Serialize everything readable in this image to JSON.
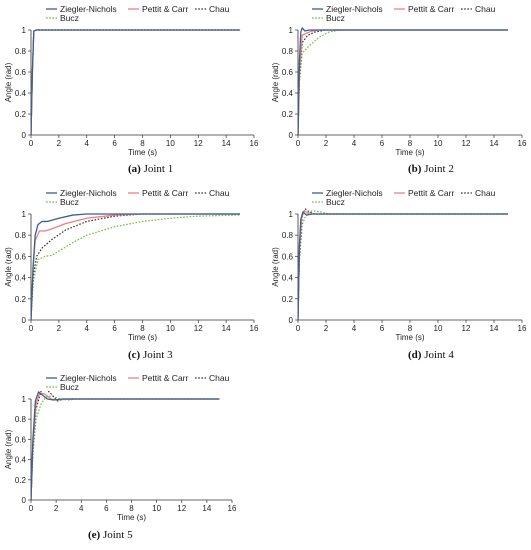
{
  "chart_data": [
    {
      "type": "line",
      "caption": {
        "label": "(a)",
        "text": "Joint 1"
      },
      "xlabel": "Time (s)",
      "ylabel": "Angle (rad)",
      "xlim": [
        0,
        16
      ],
      "ylim": [
        0,
        1
      ],
      "xticks": [
        0,
        2,
        4,
        6,
        8,
        10,
        12,
        14,
        16
      ],
      "yticks": [
        0,
        0.2,
        0.4,
        0.6,
        0.8,
        1
      ],
      "legend": "top",
      "series": [
        {
          "name": "Ziegler-Nichols",
          "color": "#3a5f8f",
          "dash": "solid",
          "points": [
            [
              0,
              0
            ],
            [
              0.1,
              0.6
            ],
            [
              0.2,
              0.99
            ],
            [
              0.4,
              1
            ],
            [
              15,
              1
            ]
          ]
        },
        {
          "name": "Pettit & Carr",
          "color": "#f08080",
          "dash": "solid",
          "points": [
            [
              0,
              0
            ],
            [
              0.1,
              0.6
            ],
            [
              0.2,
              0.99
            ],
            [
              0.4,
              1
            ],
            [
              15,
              1
            ]
          ]
        },
        {
          "name": "Chau",
          "color": "#333333",
          "dash": "dotted",
          "points": [
            [
              0,
              0
            ],
            [
              0.1,
              0.6
            ],
            [
              0.2,
              0.99
            ],
            [
              0.4,
              1
            ],
            [
              15,
              1
            ]
          ]
        },
        {
          "name": "Bucz",
          "color": "#6abf3a",
          "dash": "dotted",
          "points": [
            [
              0,
              0
            ],
            [
              0.1,
              0.6
            ],
            [
              0.2,
              0.99
            ],
            [
              0.4,
              1
            ],
            [
              15,
              1
            ]
          ]
        }
      ]
    },
    {
      "type": "line",
      "caption": {
        "label": "(b)",
        "text": "Joint 2"
      },
      "xlabel": "Time (s)",
      "ylabel": "Angle (rad)",
      "xlim": [
        0,
        16
      ],
      "ylim": [
        0,
        1
      ],
      "xticks": [
        0,
        2,
        4,
        6,
        8,
        10,
        12,
        14,
        16
      ],
      "yticks": [
        0,
        0.2,
        0.4,
        0.6,
        0.8,
        1
      ],
      "legend": "top",
      "series": [
        {
          "name": "Ziegler-Nichols",
          "color": "#3a5f8f",
          "dash": "solid",
          "points": [
            [
              0,
              0
            ],
            [
              0.1,
              0.7
            ],
            [
              0.2,
              0.98
            ],
            [
              0.3,
              1.02
            ],
            [
              0.5,
              0.99
            ],
            [
              0.8,
              1
            ],
            [
              15,
              1
            ]
          ]
        },
        {
          "name": "Pettit & Carr",
          "color": "#f08080",
          "dash": "solid",
          "points": [
            [
              0,
              0
            ],
            [
              0.1,
              0.6
            ],
            [
              0.3,
              0.95
            ],
            [
              0.6,
              0.97
            ],
            [
              1,
              0.99
            ],
            [
              1.5,
              1
            ],
            [
              15,
              1
            ]
          ]
        },
        {
          "name": "Chau",
          "color": "#333333",
          "dash": "dotted",
          "points": [
            [
              0,
              0
            ],
            [
              0.1,
              0.55
            ],
            [
              0.3,
              0.88
            ],
            [
              0.7,
              0.95
            ],
            [
              1.2,
              0.98
            ],
            [
              2,
              1
            ],
            [
              15,
              1
            ]
          ]
        },
        {
          "name": "Bucz",
          "color": "#6abf3a",
          "dash": "dotted",
          "points": [
            [
              0,
              0
            ],
            [
              0.1,
              0.5
            ],
            [
              0.3,
              0.78
            ],
            [
              0.8,
              0.85
            ],
            [
              1.5,
              0.93
            ],
            [
              2.2,
              0.98
            ],
            [
              3,
              1
            ],
            [
              15,
              1
            ]
          ]
        }
      ]
    },
    {
      "type": "line",
      "caption": {
        "label": "(c)",
        "text": "Joint 3"
      },
      "xlabel": "Time (s)",
      "ylabel": "Angle (rad)",
      "xlim": [
        0,
        16
      ],
      "ylim": [
        0,
        1
      ],
      "xticks": [
        0,
        2,
        4,
        6,
        8,
        10,
        12,
        14,
        16
      ],
      "yticks": [
        0,
        0.2,
        0.4,
        0.6,
        0.8,
        1
      ],
      "legend": "top",
      "series": [
        {
          "name": "Ziegler-Nichols",
          "color": "#3a5f8f",
          "dash": "solid",
          "points": [
            [
              0,
              0
            ],
            [
              0.15,
              0.5
            ],
            [
              0.3,
              0.8
            ],
            [
              0.5,
              0.9
            ],
            [
              0.8,
              0.93
            ],
            [
              1.2,
              0.93
            ],
            [
              2,
              0.96
            ],
            [
              3,
              0.99
            ],
            [
              4,
              1
            ],
            [
              15,
              1
            ]
          ]
        },
        {
          "name": "Pettit & Carr",
          "color": "#f08080",
          "dash": "solid",
          "points": [
            [
              0,
              0
            ],
            [
              0.15,
              0.5
            ],
            [
              0.3,
              0.75
            ],
            [
              0.6,
              0.84
            ],
            [
              1,
              0.84
            ],
            [
              1.5,
              0.86
            ],
            [
              2.5,
              0.91
            ],
            [
              4,
              0.96
            ],
            [
              6,
              0.99
            ],
            [
              8,
              1
            ],
            [
              15,
              1
            ]
          ]
        },
        {
          "name": "Chau",
          "color": "#333333",
          "dash": "dotted",
          "points": [
            [
              0,
              0
            ],
            [
              0.15,
              0.4
            ],
            [
              0.4,
              0.6
            ],
            [
              0.8,
              0.68
            ],
            [
              1.5,
              0.76
            ],
            [
              2.5,
              0.85
            ],
            [
              4,
              0.93
            ],
            [
              6,
              0.98
            ],
            [
              8,
              1
            ],
            [
              15,
              1
            ]
          ]
        },
        {
          "name": "Bucz",
          "color": "#6abf3a",
          "dash": "dotted",
          "points": [
            [
              0,
              0
            ],
            [
              0.15,
              0.35
            ],
            [
              0.5,
              0.57
            ],
            [
              1,
              0.6
            ],
            [
              1.5,
              0.61
            ],
            [
              2,
              0.65
            ],
            [
              3,
              0.73
            ],
            [
              4,
              0.8
            ],
            [
              6,
              0.88
            ],
            [
              8,
              0.93
            ],
            [
              10,
              0.96
            ],
            [
              12,
              0.98
            ],
            [
              15,
              0.99
            ]
          ]
        }
      ]
    },
    {
      "type": "line",
      "caption": {
        "label": "(d)",
        "text": "Joint 4"
      },
      "xlabel": "Time (s)",
      "ylabel": "Angle (rad)",
      "xlim": [
        0,
        16
      ],
      "ylim": [
        0,
        1
      ],
      "xticks": [
        0,
        2,
        4,
        6,
        8,
        10,
        12,
        14,
        16
      ],
      "yticks": [
        0,
        0.2,
        0.4,
        0.6,
        0.8,
        1
      ],
      "legend": "top",
      "series": [
        {
          "name": "Ziegler-Nichols",
          "color": "#3a5f8f",
          "dash": "solid",
          "points": [
            [
              0,
              0
            ],
            [
              0.1,
              0.7
            ],
            [
              0.2,
              0.95
            ],
            [
              0.35,
              1.02
            ],
            [
              0.6,
              0.99
            ],
            [
              1,
              1
            ],
            [
              15,
              1
            ]
          ]
        },
        {
          "name": "Pettit & Carr",
          "color": "#f08080",
          "dash": "solid",
          "points": [
            [
              0,
              0
            ],
            [
              0.1,
              0.65
            ],
            [
              0.25,
              0.96
            ],
            [
              0.45,
              1.03
            ],
            [
              0.8,
              1
            ],
            [
              15,
              1
            ]
          ]
        },
        {
          "name": "Chau",
          "color": "#333333",
          "dash": "dotted",
          "points": [
            [
              0,
              0
            ],
            [
              0.1,
              0.6
            ],
            [
              0.3,
              0.98
            ],
            [
              0.5,
              1.05
            ],
            [
              0.8,
              1.02
            ],
            [
              1.2,
              1
            ],
            [
              15,
              1
            ]
          ]
        },
        {
          "name": "Bucz",
          "color": "#6abf3a",
          "dash": "dotted",
          "points": [
            [
              0,
              0
            ],
            [
              0.1,
              0.55
            ],
            [
              0.3,
              0.9
            ],
            [
              0.6,
              1.0
            ],
            [
              1,
              1.03
            ],
            [
              1.6,
              1.02
            ],
            [
              2.2,
              1
            ],
            [
              15,
              1
            ]
          ]
        }
      ]
    },
    {
      "type": "line",
      "caption": {
        "label": "(e)",
        "text": "Joint 5"
      },
      "xlabel": "Time (s)",
      "ylabel": "Angle (rad)",
      "xlim": [
        0,
        16
      ],
      "ylim": [
        0,
        1
      ],
      "xticks": [
        0,
        2,
        4,
        6,
        8,
        10,
        12,
        14,
        16
      ],
      "yticks": [
        0,
        0.2,
        0.4,
        0.6,
        0.8,
        1
      ],
      "legend": "top",
      "series": [
        {
          "name": "Ziegler-Nichols",
          "color": "#3a5f8f",
          "dash": "solid",
          "points": [
            [
              0,
              0
            ],
            [
              0.15,
              0.6
            ],
            [
              0.35,
              0.98
            ],
            [
              0.6,
              1.07
            ],
            [
              0.9,
              1.04
            ],
            [
              1.3,
              1.0
            ],
            [
              1.8,
              0.99
            ],
            [
              2.5,
              1
            ],
            [
              15,
              1
            ]
          ]
        },
        {
          "name": "Pettit & Carr",
          "color": "#f08080",
          "dash": "solid",
          "points": [
            [
              0,
              0
            ],
            [
              0.15,
              0.55
            ],
            [
              0.4,
              0.95
            ],
            [
              0.7,
              1.06
            ],
            [
              1.1,
              1.05
            ],
            [
              1.6,
              1.0
            ],
            [
              2.2,
              0.99
            ],
            [
              3,
              1
            ],
            [
              15,
              1
            ]
          ]
        },
        {
          "name": "Chau",
          "color": "#333333",
          "dash": "dotted",
          "points": [
            [
              0,
              0
            ],
            [
              0.15,
              0.5
            ],
            [
              0.4,
              0.9
            ],
            [
              0.8,
              1.08
            ],
            [
              1.2,
              1.1
            ],
            [
              1.6,
              1.05
            ],
            [
              2.1,
              0.98
            ],
            [
              2.6,
              1.0
            ],
            [
              3.2,
              1
            ],
            [
              15,
              1
            ]
          ]
        },
        {
          "name": "Bucz",
          "color": "#6abf3a",
          "dash": "dotted",
          "points": [
            [
              0,
              0
            ],
            [
              0.15,
              0.45
            ],
            [
              0.4,
              0.8
            ],
            [
              0.8,
              0.95
            ],
            [
              1.2,
              1.02
            ],
            [
              1.7,
              1.03
            ],
            [
              2.3,
              1.0
            ],
            [
              3,
              0.99
            ],
            [
              3.6,
              1
            ],
            [
              15,
              1
            ]
          ]
        }
      ]
    }
  ]
}
